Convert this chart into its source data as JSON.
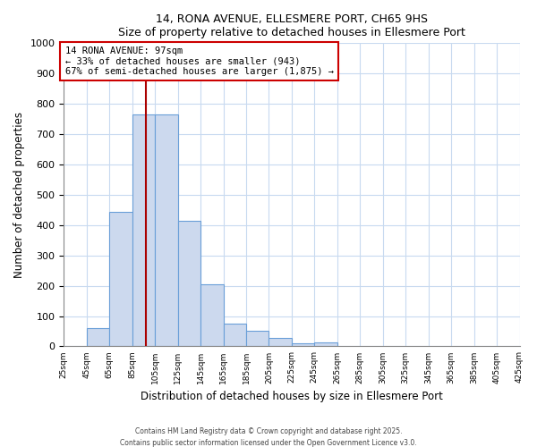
{
  "title": "14, RONA AVENUE, ELLESMERE PORT, CH65 9HS",
  "subtitle": "Size of property relative to detached houses in Ellesmere Port",
  "xlabel": "Distribution of detached houses by size in Ellesmere Port",
  "ylabel": "Number of detached properties",
  "bar_color": "#ccd9ee",
  "bar_edge_color": "#6a9fd8",
  "bin_edges": [
    25,
    45,
    65,
    85,
    105,
    125,
    145,
    165,
    185,
    205,
    225,
    245,
    265,
    285,
    305,
    325,
    345,
    365,
    385,
    405,
    425
  ],
  "bin_values": [
    0,
    60,
    445,
    765,
    765,
    415,
    205,
    75,
    50,
    28,
    10,
    14,
    0,
    0,
    0,
    0,
    0,
    0,
    0,
    0
  ],
  "property_size": 97,
  "vline_color": "#aa0000",
  "annotation_text": "14 RONA AVENUE: 97sqm\n← 33% of detached houses are smaller (943)\n67% of semi-detached houses are larger (1,875) →",
  "annotation_box_color": "#ffffff",
  "annotation_box_edge": "#cc0000",
  "ylim": [
    0,
    1000
  ],
  "footer1": "Contains HM Land Registry data © Crown copyright and database right 2025.",
  "footer2": "Contains public sector information licensed under the Open Government Licence v3.0.",
  "tick_labels": [
    "25sqm",
    "45sqm",
    "65sqm",
    "85sqm",
    "105sqm",
    "125sqm",
    "145sqm",
    "165sqm",
    "185sqm",
    "205sqm",
    "225sqm",
    "245sqm",
    "265sqm",
    "285sqm",
    "305sqm",
    "325sqm",
    "345sqm",
    "365sqm",
    "385sqm",
    "405sqm",
    "425sqm"
  ],
  "grid_color": "#c8daf0",
  "figsize": [
    6.0,
    5.0
  ],
  "dpi": 100
}
